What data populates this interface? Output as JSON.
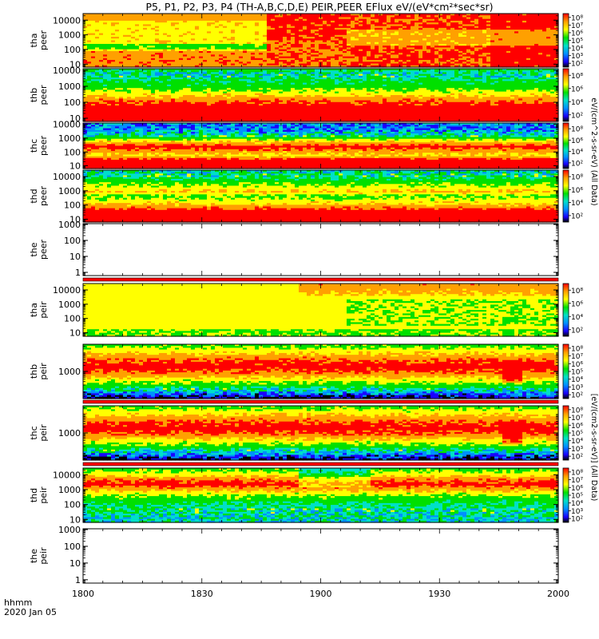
{
  "title": "P5, P1, P2, P3, P4 (TH-A,B,C,D,E) PEIR,PEER EFlux eV/(eV*cm²*sec*sr)",
  "colorbar_labels": {
    "peer": "eV/(cm^2-s-sr-eV) (All Data)",
    "peir": "[eV/(cm2-s-sr-eV)] (All Data)"
  },
  "x_axis": {
    "tick_labels": [
      "1800",
      "1830",
      "1900",
      "1930",
      "2000"
    ],
    "label_line1": "hhmm",
    "label_line2": "2020 Jan 05"
  },
  "colors": {
    "colormap": [
      "#000000",
      "#1a00ff",
      "#0090ff",
      "#00e0c8",
      "#00e000",
      "#ffff00",
      "#ffa000",
      "#ff0000"
    ],
    "separator": "#ff0000"
  },
  "chart_data": {
    "type": "heatmap",
    "title": "P5, P1, P2, P3, P4 (TH-A,B,C,D,E) PEIR,PEER EFlux eV/(eV*cm²*sec*sr)",
    "x_range_hhmm": [
      "1800",
      "2000"
    ],
    "panels": [
      {
        "id": "tha_peer",
        "ylabel": [
          "tha",
          "peer"
        ],
        "yticks": [
          "10",
          "100",
          "1000",
          "10000"
        ],
        "ylog": [
          0.8,
          4.45
        ],
        "colorbar_ticks": [
          "10²",
          "10³",
          "10⁴",
          "10⁵",
          "10⁶",
          "10⁷",
          "10⁸"
        ],
        "empty": false
      },
      {
        "id": "thb_peer",
        "ylabel": [
          "thb",
          "peer"
        ],
        "yticks": [
          "10",
          "100",
          "1000",
          "10000"
        ],
        "ylog": [
          0.8,
          4.1
        ],
        "colorbar_ticks": [
          "10²",
          "10⁴",
          "10⁶",
          "10⁸"
        ],
        "empty": false
      },
      {
        "id": "thc_peer",
        "ylabel": [
          "thc",
          "peer"
        ],
        "yticks": [
          "10",
          "100",
          "1000",
          "10000"
        ],
        "ylog": [
          0.8,
          4.1
        ],
        "colorbar_ticks": [
          "10²",
          "10⁴",
          "10⁶",
          "10⁸"
        ],
        "empty": false
      },
      {
        "id": "thd_peer",
        "ylabel": [
          "thd",
          "peer"
        ],
        "yticks": [
          "10",
          "100",
          "1000",
          "10000"
        ],
        "ylog": [
          0.8,
          4.45
        ],
        "colorbar_ticks": [
          "10²",
          "10⁴",
          "10⁶",
          "10⁸"
        ],
        "empty": false
      },
      {
        "id": "the_peer",
        "ylabel": [
          "the",
          "peer"
        ],
        "yticks": [
          "1",
          "10",
          "100",
          "1000"
        ],
        "ylog": [
          -0.2,
          3.05
        ],
        "colorbar_ticks": [],
        "empty": true
      },
      {
        "id": "tha_peir",
        "ylabel": [
          "tha",
          "peir"
        ],
        "yticks": [
          "10",
          "100",
          "1000",
          "10000"
        ],
        "ylog": [
          0.75,
          4.45
        ],
        "colorbar_ticks": [
          "10²",
          "10⁴",
          "10⁶",
          "10⁸"
        ],
        "empty": false
      },
      {
        "id": "thb_peir",
        "ylabel": [
          "thb",
          "peir"
        ],
        "yticks": [
          "1000"
        ],
        "ylog": [
          1.6,
          4.4
        ],
        "colorbar_ticks": [
          "10²",
          "10³",
          "10⁴",
          "10⁵",
          "10⁶",
          "10⁷",
          "10⁸"
        ],
        "empty": false
      },
      {
        "id": "thc_peir",
        "ylabel": [
          "thc",
          "peir"
        ],
        "yticks": [
          "1000"
        ],
        "ylog": [
          1.6,
          4.4
        ],
        "colorbar_ticks": [
          "10²",
          "10³",
          "10⁴",
          "10⁵",
          "10⁶",
          "10⁷",
          "10⁸"
        ],
        "empty": false
      },
      {
        "id": "thd_peir",
        "ylabel": [
          "thd",
          "peir"
        ],
        "yticks": [
          "10",
          "100",
          "1000",
          "10000"
        ],
        "ylog": [
          0.8,
          4.45
        ],
        "colorbar_ticks": [
          "10²",
          "10³",
          "10⁴",
          "10⁵",
          "10⁶",
          "10⁷",
          "10⁸"
        ],
        "empty": false
      },
      {
        "id": "the_peir",
        "ylabel": [
          "the",
          "peir"
        ],
        "yticks": [
          "1",
          "10",
          "100",
          "1000"
        ],
        "ylog": [
          -0.2,
          3.05
        ],
        "colorbar_ticks": [],
        "empty": true
      }
    ]
  }
}
